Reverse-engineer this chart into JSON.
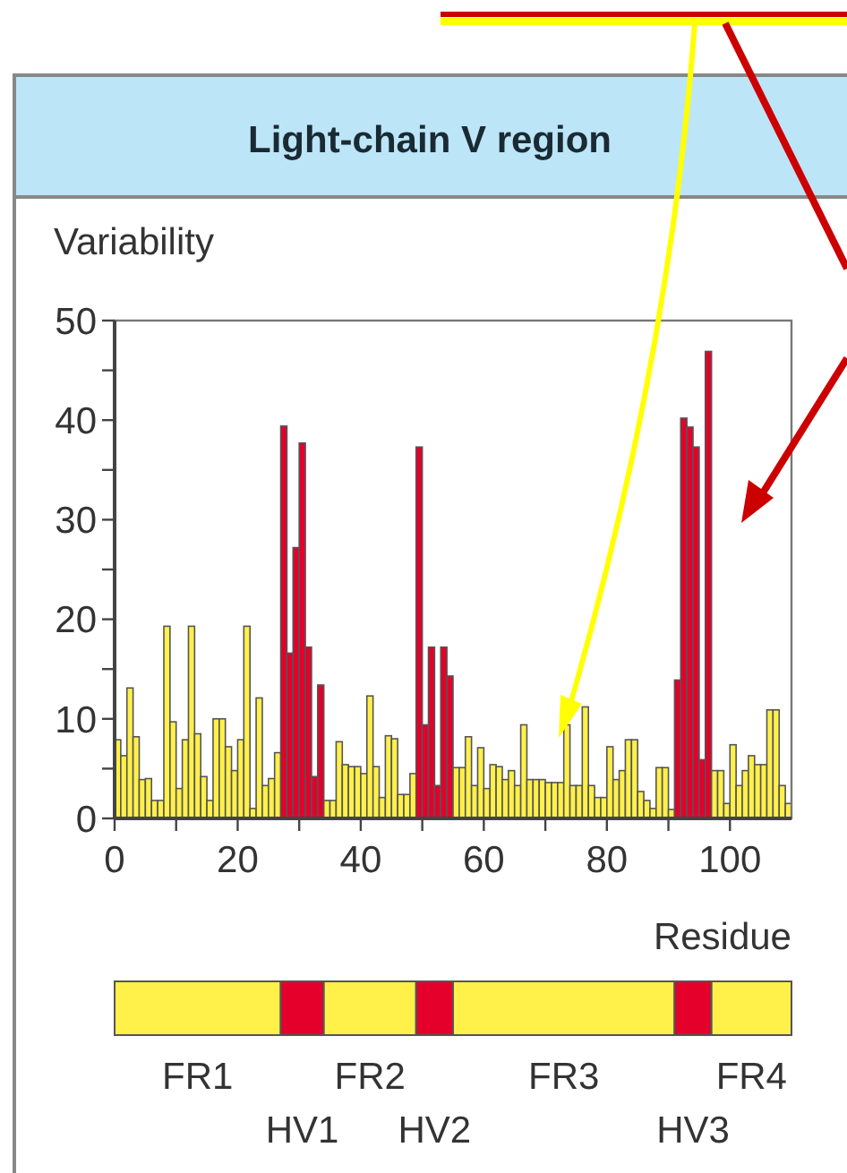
{
  "chart_data": {
    "type": "histogram",
    "title": "Light-chain V region",
    "xlabel": "Residue",
    "ylabel": "Variability",
    "bins": [
      0,
      1,
      2,
      3,
      4,
      5,
      6,
      7,
      8,
      9,
      10,
      11,
      12,
      13,
      14,
      15,
      16,
      17,
      18,
      19,
      20,
      21,
      22,
      23,
      24,
      25,
      26,
      27,
      28,
      29,
      30,
      31,
      32,
      33,
      34,
      35,
      36,
      37,
      38,
      39,
      40,
      41,
      42,
      43,
      44,
      45,
      46,
      47,
      48,
      49,
      50,
      51,
      52,
      53,
      54,
      55,
      56,
      57,
      58,
      59,
      60,
      61,
      62,
      63,
      64,
      65,
      66,
      67,
      68,
      69,
      70,
      71,
      72,
      73,
      74,
      75,
      76,
      77,
      78,
      79,
      80,
      81,
      82,
      83,
      84,
      85,
      86,
      87,
      88,
      89,
      90,
      91,
      92,
      93,
      94,
      95,
      96,
      97,
      98,
      99,
      100,
      101,
      102,
      103,
      104,
      105,
      106,
      107,
      108,
      109,
      110
    ],
    "values": [
      7.9,
      6.3,
      13.1,
      8.2,
      3.9,
      4,
      1.8,
      1.8,
      19.3,
      9.7,
      3,
      7.9,
      19.3,
      8.5,
      4.2,
      1.8,
      10,
      10,
      7.2,
      4.8,
      7.9,
      19.3,
      1,
      12.1,
      3.3,
      4,
      6.6,
      39.4,
      16.6,
      27.2,
      37.7,
      17.2,
      4.2,
      13.4,
      1.8,
      1.8,
      7.7,
      5.4,
      5.2,
      5.2,
      4.5,
      12.3,
      5.2,
      2.1,
      8.3,
      8,
      2.4,
      2.4,
      4.5,
      37.3,
      9.4,
      17.2,
      3.3,
      17.2,
      14.3,
      5.1,
      5.1,
      8.2,
      3.3,
      7.1,
      3,
      5.4,
      5.2,
      3.9,
      4.8,
      3.3,
      9.4,
      3.9,
      3.9,
      3.9,
      3.6,
      3.6,
      3.6,
      9.4,
      3.3,
      3.3,
      11.2,
      3.3,
      2.1,
      2.1,
      7.2,
      3.9,
      4.8,
      7.9,
      7.9,
      2.7,
      1.8,
      1,
      5.1,
      5.1,
      0.9,
      13.9,
      40.2,
      39.3,
      37.3,
      5.9,
      46.9,
      4.8,
      4.8,
      1.5,
      7.4,
      3.3,
      4.8,
      6.3,
      5.4,
      5.4,
      10.9,
      10.9,
      3.3,
      1.5
    ],
    "colors": [
      "#fff04a",
      "#fff04a",
      "#fff04a",
      "#fff04a",
      "#fff04a",
      "#fff04a",
      "#fff04a",
      "#fff04a",
      "#fff04a",
      "#fff04a",
      "#fff04a",
      "#fff04a",
      "#fff04a",
      "#fff04a",
      "#fff04a",
      "#fff04a",
      "#fff04a",
      "#fff04a",
      "#fff04a",
      "#fff04a",
      "#fff04a",
      "#fff04a",
      "#fff04a",
      "#fff04a",
      "#fff04a",
      "#fff04a",
      "#fff04a",
      "#e4002b",
      "#e4002b",
      "#e4002b",
      "#e4002b",
      "#e4002b",
      "#e4002b",
      "#e4002b",
      "#fff04a",
      "#fff04a",
      "#fff04a",
      "#fff04a",
      "#fff04a",
      "#fff04a",
      "#fff04a",
      "#fff04a",
      "#fff04a",
      "#fff04a",
      "#fff04a",
      "#fff04a",
      "#fff04a",
      "#fff04a",
      "#fff04a",
      "#e4002b",
      "#e4002b",
      "#e4002b",
      "#e4002b",
      "#e4002b",
      "#e4002b",
      "#fff04a",
      "#fff04a",
      "#fff04a",
      "#fff04a",
      "#fff04a",
      "#fff04a",
      "#fff04a",
      "#fff04a",
      "#fff04a",
      "#fff04a",
      "#fff04a",
      "#fff04a",
      "#fff04a",
      "#fff04a",
      "#fff04a",
      "#fff04a",
      "#fff04a",
      "#fff04a",
      "#fff04a",
      "#fff04a",
      "#fff04a",
      "#fff04a",
      "#fff04a",
      "#fff04a",
      "#fff04a",
      "#fff04a",
      "#fff04a",
      "#fff04a",
      "#fff04a",
      "#fff04a",
      "#fff04a",
      "#fff04a",
      "#fff04a",
      "#fff04a",
      "#fff04a",
      "#fff04a",
      "#e4002b",
      "#e4002b",
      "#e4002b",
      "#e4002b",
      "#e4002b",
      "#e4002b",
      "#fff04a",
      "#fff04a",
      "#fff04a",
      "#fff04a",
      "#fff04a",
      "#fff04a",
      "#fff04a",
      "#fff04a",
      "#fff04a",
      "#fff04a",
      "#fff04a",
      "#fff04a",
      "#fff04a"
    ],
    "xlim": [
      0,
      110
    ],
    "ylim": [
      0,
      50
    ],
    "xticks": [
      0,
      {
        "value": 10,
        "label": null
      },
      20,
      {
        "value": 30,
        "label": null
      },
      40,
      {
        "value": 50,
        "label": null
      },
      60,
      {
        "value": 70,
        "label": null
      },
      80,
      {
        "value": 90,
        "label": null
      },
      100
    ],
    "yticks": [
      0,
      {
        "value": 5,
        "label": null
      },
      10,
      {
        "value": 15,
        "label": null
      },
      20,
      {
        "value": 25,
        "label": null
      },
      30,
      {
        "value": 35,
        "label": null
      },
      40,
      {
        "value": 45,
        "label": null
      },
      50
    ],
    "annotations": [
      "FR1",
      "HV1",
      "FR2",
      "HV2",
      "FR3",
      "HV3",
      "FR4"
    ],
    "grid": false
  }
}
